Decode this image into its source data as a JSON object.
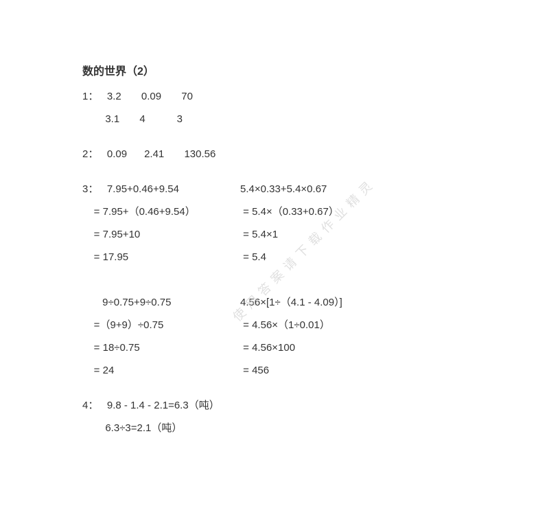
{
  "title": "数的世界（2）",
  "watermark": "使用答案请下载作业精灵",
  "problems": {
    "p1": {
      "label": "1：",
      "row1": [
        "3.2",
        "0.09",
        "70"
      ],
      "row2": [
        "3.1",
        "4",
        "3"
      ]
    },
    "p2": {
      "label": "2：",
      "values": [
        "0.09",
        "2.41",
        "130.56"
      ]
    },
    "p3": {
      "label": "3：",
      "colA": {
        "line1": "7.95+0.46+9.54",
        "line2": " = 7.95+（0.46+9.54）",
        "line3": " = 7.95+10",
        "line4": " = 17.95",
        "line5": "    9÷0.75+9÷0.75",
        "line6": " =（9+9）÷0.75",
        "line7": " = 18÷0.75",
        "line8": " = 24"
      },
      "colB": {
        "line1": "5.4×0.33+5.4×0.67",
        "line2": " = 5.4×（0.33+0.67）",
        "line3": " = 5.4×1",
        "line4": " = 5.4",
        "line5": "4.56×[1÷（4.1 - 4.09）]",
        "line6": " = 4.56×（1÷0.01）",
        "line7": " = 4.56×100",
        "line8": " = 456"
      }
    },
    "p4": {
      "label": "4：",
      "line1": "9.8 - 1.4 - 2.1=6.3（吨）",
      "line2": "6.3÷3=2.1（吨）"
    }
  },
  "colors": {
    "text": "#333333",
    "background": "#ffffff",
    "watermark": "#cccccc"
  },
  "fonts": {
    "title_size": 16,
    "body_size": 15,
    "watermark_size": 18
  }
}
